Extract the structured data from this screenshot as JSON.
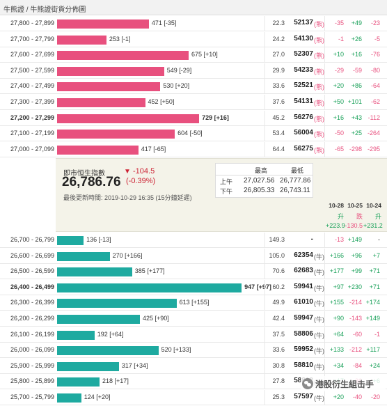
{
  "title": "牛熊證 / 牛熊證街貨分佈圖",
  "colors": {
    "bear": "#e8507e",
    "bull": "#1eaaa0",
    "up": "#18a058",
    "down": "#e8507e",
    "index_down": "#cc2233"
  },
  "bear_rows": [
    {
      "range": "27,800 - 27,899",
      "amount": "471 [-35]",
      "value": 471,
      "bold": false,
      "distance": "22.3",
      "code": "52137",
      "tag": "(熊)",
      "c1": "-35",
      "c2": "+49",
      "c3": "-23"
    },
    {
      "range": "27,700 - 27,799",
      "amount": "253 [-1]",
      "value": 253,
      "bold": false,
      "distance": "24.2",
      "code": "54130",
      "tag": "(熊)",
      "c1": "-1",
      "c2": "+26",
      "c3": "-5"
    },
    {
      "range": "27,600 - 27,699",
      "amount": "675 [+10]",
      "value": 675,
      "bold": false,
      "distance": "27.0",
      "code": "52307",
      "tag": "(熊)",
      "c1": "+10",
      "c2": "+16",
      "c3": "-76"
    },
    {
      "range": "27,500 - 27,599",
      "amount": "549 [-29]",
      "value": 549,
      "bold": false,
      "distance": "29.9",
      "code": "54233",
      "tag": "(熊)",
      "c1": "-29",
      "c2": "-59",
      "c3": "-80"
    },
    {
      "range": "27,400 - 27,499",
      "amount": "530 [+20]",
      "value": 530,
      "bold": false,
      "distance": "33.6",
      "code": "52521",
      "tag": "(熊)",
      "c1": "+20",
      "c2": "+86",
      "c3": "-64"
    },
    {
      "range": "27,300 - 27,399",
      "amount": "452 [+50]",
      "value": 452,
      "bold": false,
      "distance": "37.6",
      "code": "54131",
      "tag": "(熊)",
      "c1": "+50",
      "c2": "+101",
      "c3": "-62"
    },
    {
      "range": "27,200 - 27,299",
      "amount": "729 [+16]",
      "value": 729,
      "bold": true,
      "distance": "45.2",
      "code": "56276",
      "tag": "(熊)",
      "c1": "+16",
      "c2": "+43",
      "c3": "-112"
    },
    {
      "range": "27,100 - 27,199",
      "amount": "604 [-50]",
      "value": 604,
      "bold": false,
      "distance": "53.4",
      "code": "56004",
      "tag": "(熊)",
      "c1": "-50",
      "c2": "+25",
      "c3": "-264"
    },
    {
      "range": "27,000 - 27,099",
      "amount": "417 [-65]",
      "value": 417,
      "bold": false,
      "distance": "64.4",
      "code": "56275",
      "tag": "(熊)",
      "c1": "-65",
      "c2": "-298",
      "c3": "-295"
    }
  ],
  "index": {
    "label": "即市恒生指數",
    "value": "26,786.76",
    "arrow": "▼",
    "change": "-104.5",
    "change_pct": "(-0.39%)",
    "updated": "最後更新時間: 2019-10-29 16:35 (15分鐘延遲)"
  },
  "high_low": {
    "col_high": "最高",
    "col_low": "最低",
    "am_label": "上午",
    "pm_label": "下午",
    "am_high": "27,027.56",
    "am_low": "26,777.86",
    "pm_high": "26,805.33",
    "pm_low": "26,743.11"
  },
  "daily": {
    "dates": [
      "10-28",
      "10-25",
      "10-24"
    ],
    "labels": [
      "升",
      "跌",
      "升"
    ],
    "totals": [
      "+223.9",
      "-130.5",
      "+231.2"
    ]
  },
  "bull_rows": [
    {
      "range": "26,700 - 26,799",
      "amount": "136 [-13]",
      "value": 136,
      "bold": false,
      "distance": "149.3",
      "code": "-",
      "tag": "",
      "c1": "-13",
      "c2": "+149",
      "c3": "-"
    },
    {
      "range": "26,600 - 26,699",
      "amount": "270 [+166]",
      "value": 270,
      "bold": false,
      "distance": "105.0",
      "code": "62354",
      "tag": "(牛)",
      "c1": "+166",
      "c2": "+96",
      "c3": "+7"
    },
    {
      "range": "26,500 - 26,599",
      "amount": "385 [+177]",
      "value": 385,
      "bold": false,
      "distance": "70.6",
      "code": "62683",
      "tag": "(牛)",
      "c1": "+177",
      "c2": "+99",
      "c3": "+71"
    },
    {
      "range": "26,400 - 26,499",
      "amount": "947 [+97]",
      "value": 947,
      "bold": true,
      "distance": "60.2",
      "code": "59941",
      "tag": "(牛)",
      "c1": "+97",
      "c2": "+230",
      "c3": "+71"
    },
    {
      "range": "26,300 - 26,399",
      "amount": "613 [+155]",
      "value": 613,
      "bold": false,
      "distance": "49.9",
      "code": "61010",
      "tag": "(牛)",
      "c1": "+155",
      "c2": "-214",
      "c3": "+174"
    },
    {
      "range": "26,200 - 26,299",
      "amount": "425 [+90]",
      "value": 425,
      "bold": false,
      "distance": "42.4",
      "code": "59947",
      "tag": "(牛)",
      "c1": "+90",
      "c2": "-143",
      "c3": "+149"
    },
    {
      "range": "26,100 - 26,199",
      "amount": "192 [+64]",
      "value": 192,
      "bold": false,
      "distance": "37.5",
      "code": "58806",
      "tag": "(牛)",
      "c1": "+64",
      "c2": "-60",
      "c3": "-1"
    },
    {
      "range": "26,000 - 26,099",
      "amount": "520 [+133]",
      "value": 520,
      "bold": false,
      "distance": "33.6",
      "code": "59952",
      "tag": "(牛)",
      "c1": "+133",
      "c2": "-212",
      "c3": "+117"
    },
    {
      "range": "25,900 - 25,999",
      "amount": "317 [+34]",
      "value": 317,
      "bold": false,
      "distance": "30.8",
      "code": "58810",
      "tag": "(牛)",
      "c1": "+34",
      "c2": "-84",
      "c3": "+24"
    },
    {
      "range": "25,800 - 25,899",
      "amount": "218 [+17]",
      "value": 218,
      "bold": false,
      "distance": "27.8",
      "code": "58812",
      "tag": "(牛)",
      "c1": "+17",
      "c2": "-36",
      "c3": "+6"
    },
    {
      "range": "25,700 - 25,799",
      "amount": "124 [+20]",
      "value": 124,
      "bold": false,
      "distance": "25.3",
      "code": "57597",
      "tag": "(牛)",
      "c1": "+20",
      "c2": "-40",
      "c3": "-20"
    }
  ],
  "bar_scale_max": 1000,
  "watermark": {
    "icon": "wechat-icon",
    "text": "港股衍生組击手"
  }
}
